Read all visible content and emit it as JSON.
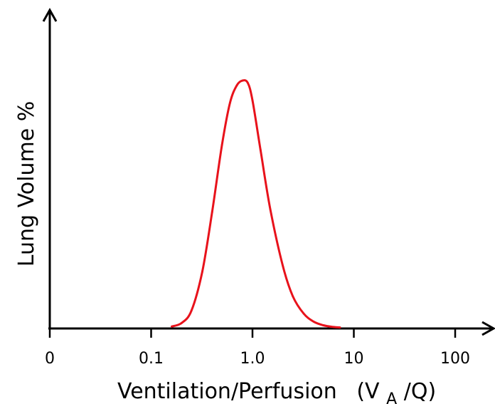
{
  "chart_data": {
    "type": "line",
    "title": "",
    "xlabel": "Ventilation/Perfusion",
    "xlabel_symbol": {
      "open": "(V",
      "subscript": "A",
      "close": "/Q)"
    },
    "ylabel": "Lung Volume %",
    "x_scale": "log",
    "xlim": [
      0.01,
      100
    ],
    "ylim": [
      0,
      100
    ],
    "x_ticks": [
      0.01,
      0.1,
      1.0,
      10,
      100
    ],
    "x_tick_labels": [
      "0",
      "0.1",
      "1.0",
      "10",
      "100"
    ],
    "y_ticks": [],
    "grid": false,
    "legend": "none",
    "series": [
      {
        "color": "#e8121b",
        "x": [
          0.16,
          0.2,
          0.25,
          0.32,
          0.4,
          0.5,
          0.6,
          0.7,
          0.8,
          0.9,
          1.0,
          1.2,
          1.5,
          2.0,
          2.5,
          3.2,
          4.0,
          5.0,
          6.3,
          7.3
        ],
        "y": [
          0.8,
          2.2,
          7.2,
          23,
          47,
          74,
          91,
          98,
          100,
          99,
          92,
          72,
          48,
          25,
          13,
          6,
          2.8,
          1.3,
          0.6,
          0.4
        ]
      }
    ]
  },
  "colors": {
    "axis": "#000000",
    "curve": "#e8121b"
  }
}
